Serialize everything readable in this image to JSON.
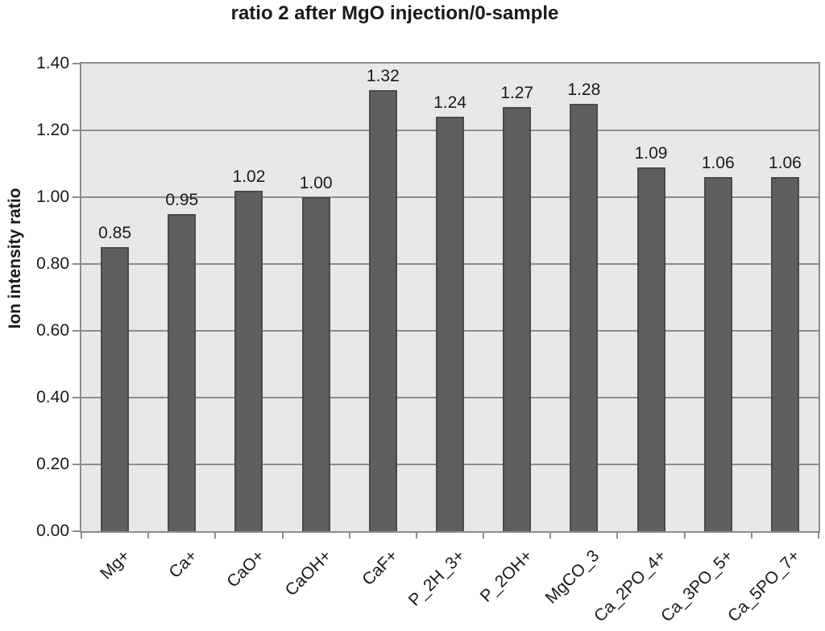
{
  "chart_title": "ratio 2 after MgO injection/0-sample",
  "chart_data": {
    "type": "bar",
    "title": "ratio 2 after MgO injection/0-sample",
    "xlabel": "",
    "ylabel": "Ion intensity ratio",
    "categories": [
      "Mg+",
      "Ca+",
      "CaO+",
      "CaOH+",
      "CaF+",
      "P_2H_3+",
      "P_2OH+",
      "MgCO_3",
      "Ca_2PO_4+",
      "Ca_3PO_5+",
      "Ca_5PO_7+"
    ],
    "values": [
      0.85,
      0.95,
      1.02,
      1.0,
      1.32,
      1.24,
      1.27,
      1.28,
      1.09,
      1.06,
      1.06
    ],
    "value_labels": [
      "0.85",
      "0.95",
      "1.02",
      "1.00",
      "1.32",
      "1.24",
      "1.27",
      "1.28",
      "1.09",
      "1.06",
      "1.06"
    ],
    "ylim": [
      0,
      1.4
    ],
    "ytick_step": 0.2,
    "ytick_labels": [
      "0.00",
      "0.20",
      "0.40",
      "0.60",
      "0.80",
      "1.00",
      "1.20",
      "1.40"
    ],
    "grid": true,
    "legend": false,
    "colors": {
      "bar_fill": "#5f5f5f",
      "bar_border": "#4a4a4a",
      "plot_background": "#e8e8e8",
      "gridline": "#8c8c8c",
      "axis": "#8c8c8c",
      "text": "#1a1a1a",
      "page_background": "#ffffff"
    }
  }
}
